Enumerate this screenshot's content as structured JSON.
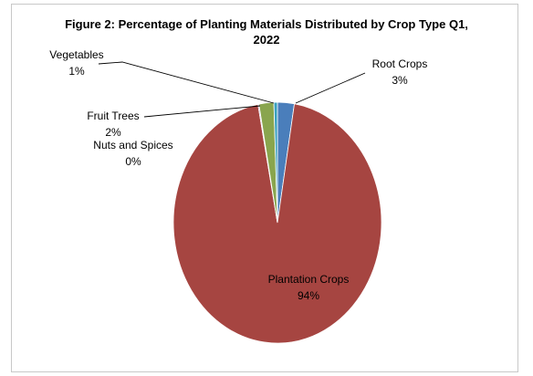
{
  "chart_data": {
    "type": "pie",
    "title_line1": "Figure 2: Percentage of Planting Materials Distributed by Crop Type Q1,",
    "title_line2": "2022",
    "slices": [
      {
        "name": "Root Crops",
        "pct_label": "3%",
        "value": 2.6,
        "color": "#4a7ebb"
      },
      {
        "name": "Plantation Crops",
        "pct_label": "94%",
        "value": 94.4,
        "color": "#a64541"
      },
      {
        "name": "Nuts and Spices",
        "pct_label": "0%",
        "value": 0.15,
        "color": "#7a5a9a"
      },
      {
        "name": "Fruit Trees",
        "pct_label": "2%",
        "value": 2.3,
        "color": "#89a54e"
      },
      {
        "name": "Vegetables",
        "pct_label": "1%",
        "value": 0.55,
        "color": "#3aa0bf"
      }
    ],
    "legend": "none",
    "data_labels": "category-name-and-percentage"
  }
}
